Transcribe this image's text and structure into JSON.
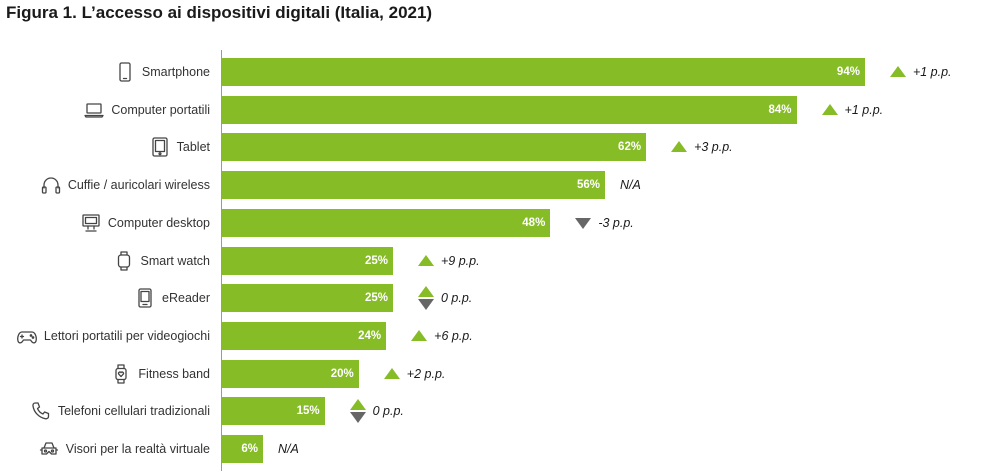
{
  "title": "Figura 1. L’accesso ai dispositivi digitali (Italia, 2021)",
  "colors": {
    "bar": "#86bc25",
    "up": "#86bc25",
    "down": "#666666"
  },
  "chart_data": {
    "type": "bar",
    "orientation": "horizontal",
    "title": "Figura 1. L’accesso ai dispositivi digitali (Italia, 2021)",
    "xlabel": "",
    "ylabel": "",
    "xlim": [
      0,
      100
    ],
    "grid": false,
    "categories": [
      "Smartphone",
      "Computer portatili",
      "Tablet",
      "Cuffie / auricolari wireless",
      "Computer desktop",
      "Smart watch",
      "eReader",
      "Lettori portatili per videogiochi",
      "Fitness band",
      "Telefoni cellulari tradizionali",
      "Visori per la realtà virtuale"
    ],
    "values": [
      94,
      84,
      62,
      56,
      48,
      25,
      25,
      24,
      20,
      15,
      6
    ],
    "value_labels": [
      "94%",
      "84%",
      "62%",
      "56%",
      "48%",
      "25%",
      "25%",
      "24%",
      "20%",
      "15%",
      "6%"
    ],
    "changes": [
      "+1 p.p.",
      "+1 p.p.",
      "+3 p.p.",
      "N/A",
      "-3 p.p.",
      "+9 p.p.",
      "0 p.p.",
      "+6 p.p.",
      "+2 p.p.",
      "0 p.p.",
      "N/A"
    ],
    "change_direction": [
      "up",
      "up",
      "up",
      "none",
      "down",
      "up",
      "flat",
      "up",
      "up",
      "flat",
      "none"
    ],
    "icons": [
      "smartphone-icon",
      "laptop-icon",
      "tablet-icon",
      "headphones-icon",
      "desktop-icon",
      "smartwatch-icon",
      "ereader-icon",
      "gamepad-icon",
      "fitness-band-icon",
      "phone-handset-icon",
      "vr-headset-icon"
    ]
  }
}
